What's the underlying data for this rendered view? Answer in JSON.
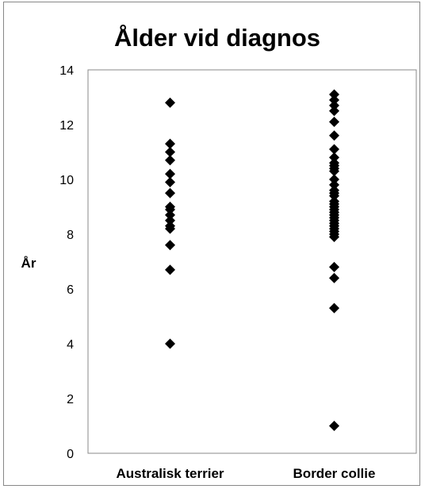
{
  "chart_data": {
    "type": "scatter",
    "title": "Ålder vid diagnos",
    "xlabel": "",
    "ylabel": "År",
    "ylim": [
      0,
      14
    ],
    "yticks": [
      0,
      2,
      4,
      6,
      8,
      10,
      12,
      14
    ],
    "grid": false,
    "categories": [
      "Australisk terrier",
      "Border collie"
    ],
    "series": [
      {
        "category": "Australisk terrier",
        "values": [
          12.8,
          11.3,
          11.0,
          10.7,
          10.2,
          9.9,
          9.5,
          9.0,
          8.9,
          8.7,
          8.5,
          8.3,
          8.2,
          7.6,
          6.7,
          4.0
        ]
      },
      {
        "category": "Border collie",
        "values": [
          13.1,
          12.9,
          12.7,
          12.5,
          12.1,
          11.6,
          11.1,
          10.8,
          10.6,
          10.5,
          10.4,
          10.3,
          10.0,
          9.8,
          9.6,
          9.5,
          9.4,
          9.2,
          9.1,
          9.0,
          8.9,
          8.8,
          8.7,
          8.6,
          8.5,
          8.4,
          8.3,
          8.2,
          8.1,
          8.0,
          7.9,
          6.8,
          6.4,
          5.3,
          1.0
        ]
      }
    ],
    "marker_color": "#000000",
    "marker": "diamond"
  }
}
